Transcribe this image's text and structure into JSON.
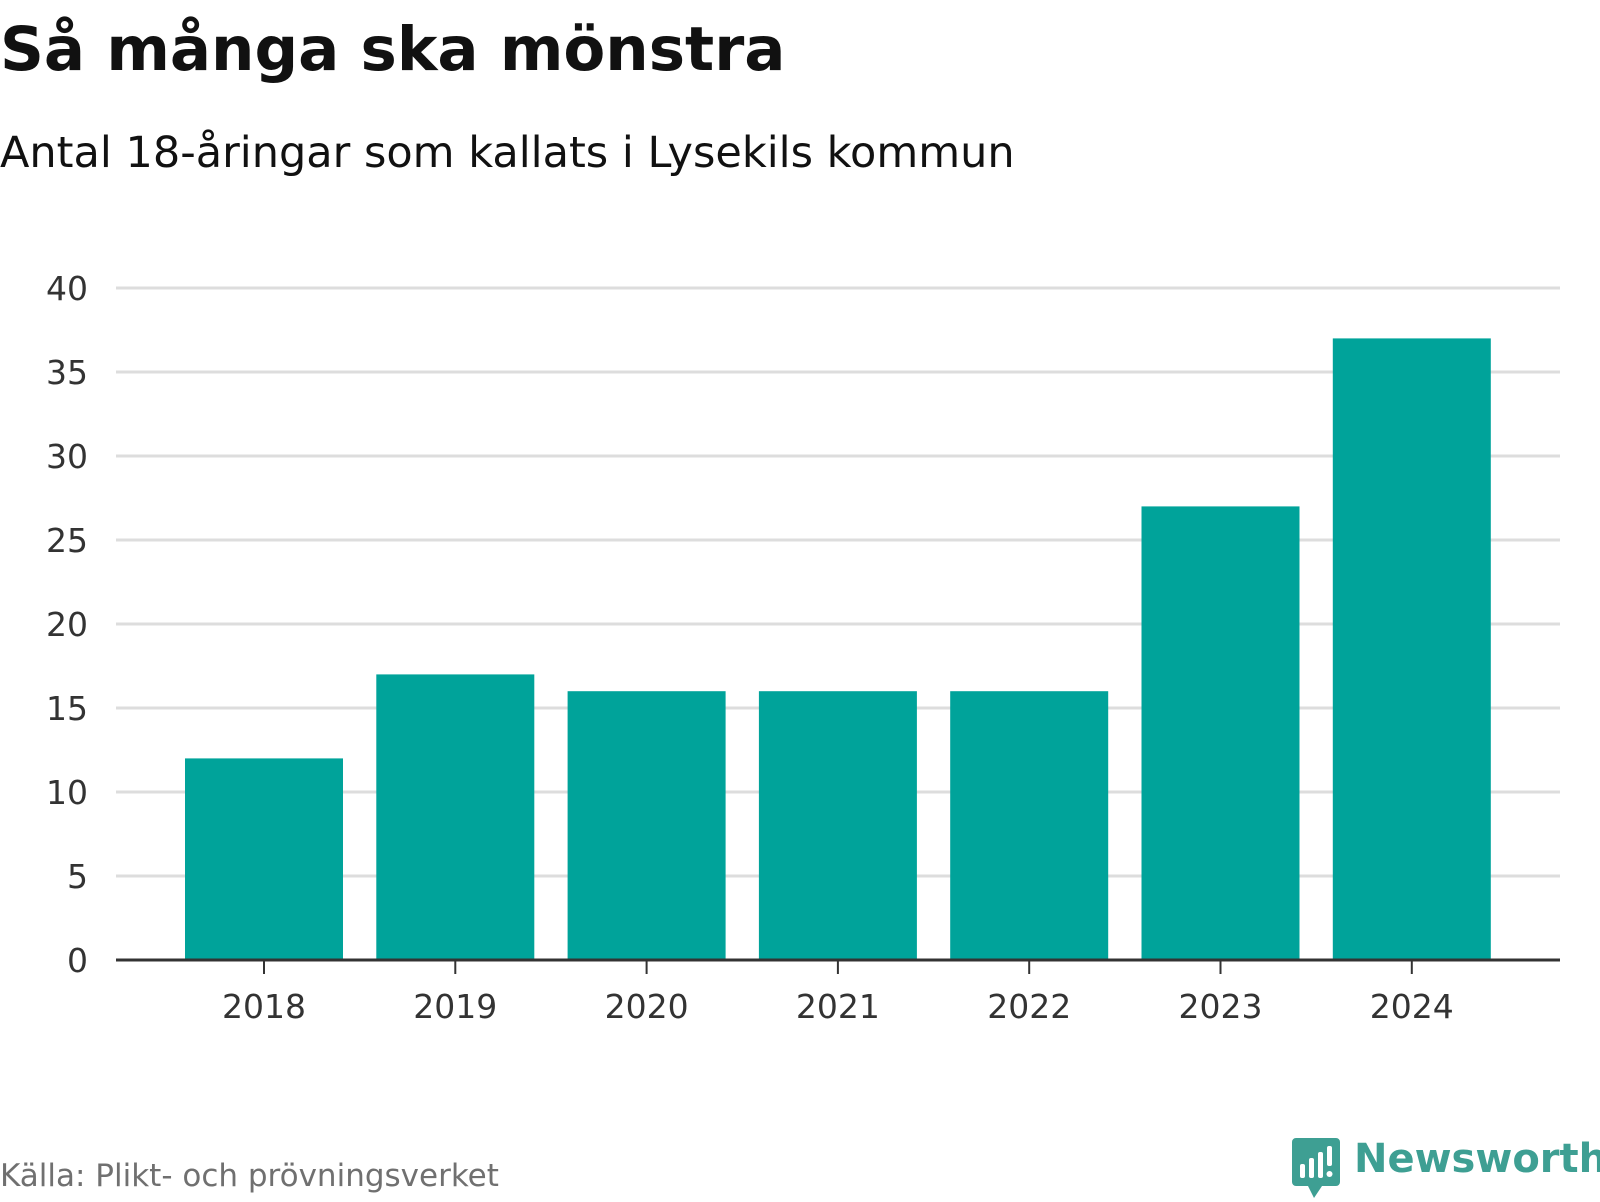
{
  "title": "Så många ska mönstra",
  "subtitle": "Antal 18-åringar som kallats i Lysekils kommun",
  "source": "Källa: Plikt- och prövningsverket",
  "brand": {
    "name": "Newsworthy",
    "icon": "newsworthy-logo-icon",
    "color": "#3e9f93"
  },
  "colors": {
    "bar": "#00a39a",
    "grid": "#dddddd",
    "axis": "#333333"
  },
  "chart_data": {
    "type": "bar",
    "title": "Så många ska mönstra",
    "subtitle": "Antal 18-åringar som kallats i Lysekils kommun",
    "categories": [
      "2018",
      "2019",
      "2020",
      "2021",
      "2022",
      "2023",
      "2024"
    ],
    "values": [
      12,
      17,
      16,
      16,
      16,
      27,
      37
    ],
    "xlabel": "",
    "ylabel": "",
    "ylim": [
      0,
      40
    ],
    "yticks": [
      0,
      5,
      10,
      15,
      20,
      25,
      30,
      35,
      40
    ],
    "grid": true,
    "legend": "none"
  }
}
